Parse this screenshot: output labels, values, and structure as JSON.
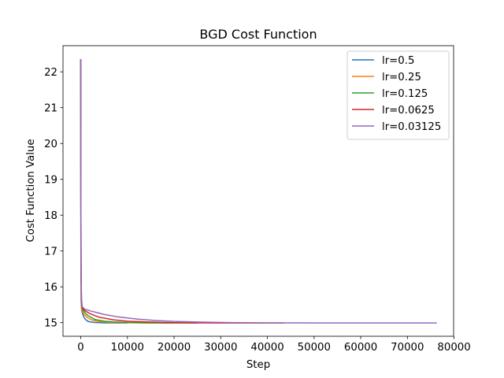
{
  "chart_data": {
    "type": "line",
    "title": "BGD Cost Function",
    "xlabel": "Step",
    "ylabel": "Cost Function Value",
    "xlim": [
      -3800,
      79900
    ],
    "ylim": [
      14.62,
      22.73
    ],
    "xticks": [
      0,
      10000,
      20000,
      30000,
      40000,
      50000,
      60000,
      70000,
      80000
    ],
    "yticks": [
      15,
      16,
      17,
      18,
      19,
      20,
      21,
      22
    ],
    "grid": false,
    "legend_position": "top-right",
    "series": [
      {
        "name": "lr=0.5",
        "color": "#1f77b4",
        "x": [
          0,
          20,
          50,
          100,
          200,
          400,
          700,
          1000,
          1500,
          2000,
          3000,
          4000,
          5000,
          6000,
          8000,
          10000
        ],
        "y": [
          22.35,
          18.0,
          16.2,
          15.55,
          15.35,
          15.25,
          15.15,
          15.09,
          15.04,
          15.02,
          15.005,
          15.0,
          14.995,
          14.993,
          14.99,
          14.99
        ]
      },
      {
        "name": "lr=0.25",
        "color": "#ff7f0e",
        "x": [
          0,
          20,
          50,
          100,
          200,
          400,
          800,
          1500,
          2500,
          3500,
          5000,
          7000,
          9000,
          12000,
          16000,
          20000
        ],
        "y": [
          22.35,
          18.5,
          16.6,
          15.65,
          15.38,
          15.3,
          15.22,
          15.13,
          15.07,
          15.04,
          15.02,
          15.005,
          14.998,
          14.993,
          14.99,
          14.99
        ]
      },
      {
        "name": "lr=0.125",
        "color": "#2ca02c",
        "x": [
          0,
          30,
          70,
          150,
          300,
          600,
          1500,
          3000,
          5000,
          7000,
          10000,
          14000,
          18000,
          25000
        ],
        "y": [
          22.35,
          18.2,
          16.5,
          15.6,
          15.4,
          15.32,
          15.2,
          15.09,
          15.04,
          15.02,
          15.005,
          14.995,
          14.992,
          14.99
        ]
      },
      {
        "name": "lr=0.0625",
        "color": "#d62728",
        "x": [
          0,
          30,
          70,
          150,
          300,
          700,
          2000,
          4000,
          7000,
          10000,
          14000,
          18000,
          24000,
          30000,
          37000,
          43500
        ],
        "y": [
          22.35,
          18.3,
          16.6,
          15.65,
          15.42,
          15.35,
          15.25,
          15.15,
          15.08,
          15.04,
          15.02,
          15.005,
          14.995,
          14.991,
          14.99,
          14.99
        ]
      },
      {
        "name": "lr=0.03125",
        "color": "#9467bd",
        "x": [
          0,
          30,
          70,
          150,
          300,
          800,
          2000,
          5000,
          8000,
          12000,
          16000,
          20000,
          26000,
          32000,
          40000,
          50000,
          60000,
          70000,
          76300
        ],
        "y": [
          22.35,
          18.4,
          16.7,
          15.7,
          15.45,
          15.38,
          15.33,
          15.23,
          15.16,
          15.1,
          15.06,
          15.035,
          15.015,
          15.003,
          14.995,
          14.992,
          14.99,
          14.99,
          14.99
        ]
      }
    ]
  }
}
